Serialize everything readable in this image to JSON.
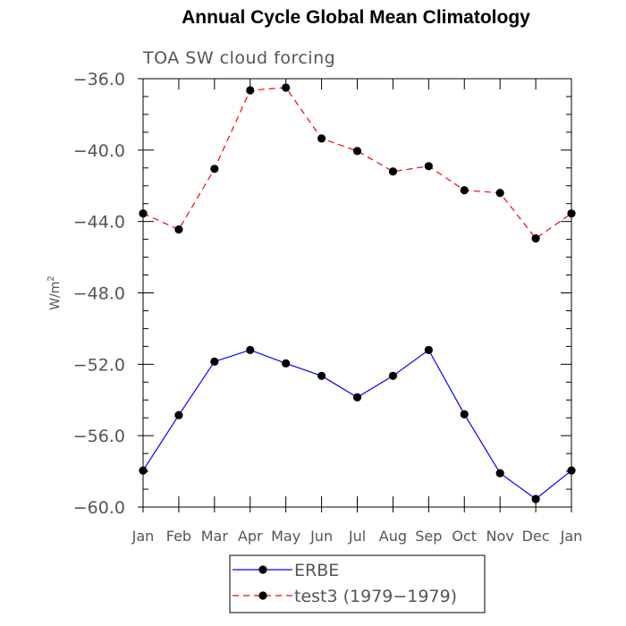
{
  "chart_data": {
    "type": "line",
    "title": "Annual Cycle Global Mean Climatology",
    "subtitle": "TOA SW cloud forcing",
    "xlabel": "",
    "ylabel": "W/m",
    "ylabel_superscript": "2",
    "categories": [
      "Jan",
      "Feb",
      "Mar",
      "Apr",
      "May",
      "Jun",
      "Jul",
      "Aug",
      "Sep",
      "Oct",
      "Nov",
      "Dec",
      "Jan"
    ],
    "ylim": [
      -60,
      -36
    ],
    "yticks": [
      -36,
      -40,
      -44,
      -48,
      -52,
      -56,
      -60
    ],
    "ytick_labels": [
      "−36.0",
      "−40.0",
      "−44.0",
      "−48.0",
      "−52.0",
      "−56.0",
      "−60.0"
    ],
    "grid": false,
    "legend_position": "bottom",
    "series": [
      {
        "name": "ERBE",
        "color": "#0000ff",
        "style": "solid",
        "marker": "filled-circle",
        "values": [
          -57.95,
          -54.85,
          -51.85,
          -51.2,
          -51.95,
          -52.65,
          -53.85,
          -52.65,
          -51.2,
          -54.8,
          -58.1,
          -59.55,
          -57.95
        ]
      },
      {
        "name": "test3 (1979−1979)",
        "color": "#ff0000",
        "style": "dashed",
        "marker": "filled-circle",
        "values": [
          -43.55,
          -44.45,
          -41.05,
          -36.65,
          -36.5,
          -39.35,
          -40.05,
          -41.2,
          -40.9,
          -42.25,
          -42.4,
          -44.95,
          -43.55
        ]
      }
    ]
  }
}
